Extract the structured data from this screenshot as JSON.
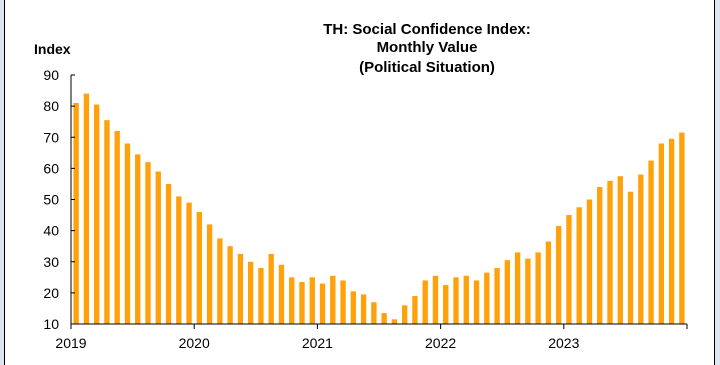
{
  "chart_data": {
    "type": "bar",
    "title_lines": [
      "TH: Social Confidence Index:",
      "Monthly Value",
      "(Political Situation)"
    ],
    "ylabel": "Index",
    "xlabel": "",
    "ylim": [
      10,
      90
    ],
    "yticks": [
      10,
      20,
      30,
      40,
      50,
      60,
      70,
      80,
      90
    ],
    "xtick_labels": [
      "2019",
      "2020",
      "2021",
      "2022",
      "2023"
    ],
    "grid": false,
    "legend": "none",
    "bar_color": "#ffa10a",
    "categories": [
      "2019-01",
      "2019-02",
      "2019-03",
      "2019-04",
      "2019-05",
      "2019-06",
      "2019-07",
      "2019-08",
      "2019-09",
      "2019-10",
      "2019-11",
      "2019-12",
      "2020-01",
      "2020-02",
      "2020-03",
      "2020-04",
      "2020-05",
      "2020-06",
      "2020-07",
      "2020-08",
      "2020-09",
      "2020-10",
      "2020-11",
      "2020-12",
      "2021-01",
      "2021-02",
      "2021-03",
      "2021-04",
      "2021-05",
      "2021-06",
      "2021-07",
      "2021-08",
      "2021-09",
      "2021-10",
      "2021-11",
      "2021-12",
      "2022-01",
      "2022-02",
      "2022-03",
      "2022-04",
      "2022-05",
      "2022-06",
      "2022-07",
      "2022-08",
      "2022-09",
      "2022-10",
      "2022-11",
      "2022-12",
      "2023-01",
      "2023-02",
      "2023-03",
      "2023-04",
      "2023-05",
      "2023-06",
      "2023-07",
      "2023-08",
      "2023-09",
      "2023-10",
      "2023-11",
      "2023-12"
    ],
    "values": [
      81,
      84,
      80.5,
      75.5,
      72,
      68,
      64.5,
      62,
      59,
      55,
      51,
      49,
      46,
      42,
      37.5,
      35,
      32.5,
      30,
      28,
      32.5,
      29,
      25,
      23.5,
      25,
      23,
      25.5,
      24,
      20.5,
      19.5,
      17,
      13.5,
      11.5,
      16,
      19,
      24,
      25.5,
      22.5,
      25,
      25.5,
      24,
      26.5,
      28,
      30.5,
      33,
      31,
      33,
      36.5,
      41.5,
      45,
      47.5,
      50,
      54,
      56,
      57.5,
      52.5,
      58,
      62.5,
      68,
      69.5,
      71.5
    ]
  }
}
